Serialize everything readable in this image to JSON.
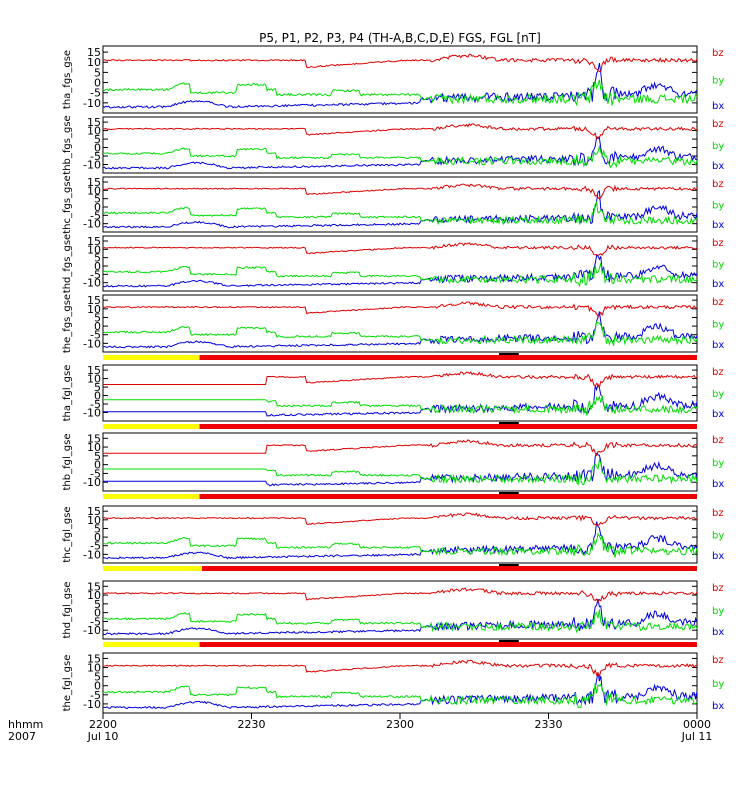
{
  "chart_data": {
    "type": "line",
    "title": "P5, P1, P2, P3, P4 (TH-A,B,C,D,E) FGS, FGL [nT]",
    "x_axis": {
      "range": [
        0,
        120
      ],
      "unit": "minutes after 2007-07-10 22:00",
      "ticks": [
        {
          "x": 0,
          "label": "2200",
          "sublabel": "Jul 10"
        },
        {
          "x": 30,
          "label": "2230",
          "sublabel": ""
        },
        {
          "x": 60,
          "label": "2300",
          "sublabel": ""
        },
        {
          "x": 90,
          "label": "2330",
          "sublabel": ""
        },
        {
          "x": 120,
          "label": "0000",
          "sublabel": "Jul 11"
        }
      ],
      "label_left_top": "hhmm",
      "label_left_bottom": "2007"
    },
    "series_colors": {
      "bz": "#dd0000",
      "by": "#00dd00",
      "bx": "#0000dd"
    },
    "bar_colors": {
      "left": "#ffff00",
      "right": "#ee0000",
      "marker": "#000000"
    },
    "panels": [
      {
        "ylabel": "tha_fgs_gse",
        "yticks": [
          "15",
          "10",
          "5",
          "0",
          "-5",
          "-10"
        ],
        "ylim": [
          -15,
          18
        ],
        "legend": [
          "bz",
          "by",
          "bx"
        ],
        "has_mode_bar": false,
        "has_flat_start": false,
        "mode_bar_split_min": null
      },
      {
        "ylabel": "thb_fgs_gse",
        "yticks": [
          "15",
          "10",
          "5",
          "0",
          "-5",
          "-10"
        ],
        "ylim": [
          -15,
          18
        ],
        "legend": [
          "bz",
          "by",
          "bx"
        ],
        "has_mode_bar": false,
        "has_flat_start": false,
        "mode_bar_split_min": null
      },
      {
        "ylabel": "thc_fgs_gse",
        "yticks": [
          "15",
          "10",
          "5",
          "0",
          "-5",
          "-10"
        ],
        "ylim": [
          -15,
          18
        ],
        "legend": [
          "bz",
          "by",
          "bx"
        ],
        "has_mode_bar": false,
        "has_flat_start": false,
        "mode_bar_split_min": null
      },
      {
        "ylabel": "thd_fgs_gse",
        "yticks": [
          "15",
          "10",
          "5",
          "0",
          "-5",
          "-10"
        ],
        "ylim": [
          -15,
          18
        ],
        "legend": [
          "bz",
          "by",
          "bx"
        ],
        "has_mode_bar": false,
        "has_flat_start": false,
        "mode_bar_split_min": null
      },
      {
        "ylabel": "the_fgs_gse",
        "yticks": [
          "15",
          "10",
          "5",
          "0",
          "-5",
          "-10"
        ],
        "ylim": [
          -15,
          18
        ],
        "legend": [
          "bz",
          "by",
          "bx"
        ],
        "has_mode_bar": true,
        "has_flat_start": false,
        "mode_bar_split_min": 19.5
      },
      {
        "ylabel": "tha_fgl_gse",
        "yticks": [
          "15",
          "10",
          "5",
          "0",
          "-5",
          "-10"
        ],
        "ylim": [
          -15,
          18
        ],
        "legend": [
          "bz",
          "by",
          "bx"
        ],
        "has_mode_bar": true,
        "has_flat_start": true,
        "mode_bar_split_min": 19.5
      },
      {
        "ylabel": "thb_fgl_gse",
        "yticks": [
          "15",
          "10",
          "5",
          "0",
          "-5",
          "-10"
        ],
        "ylim": [
          -15,
          18
        ],
        "legend": [
          "bz",
          "by",
          "bx"
        ],
        "has_mode_bar": true,
        "has_flat_start": true,
        "mode_bar_split_min": 19.5
      },
      {
        "ylabel": "thc_fgl_gse",
        "yticks": [
          "15",
          "10",
          "5",
          "0",
          "-5",
          "-10"
        ],
        "ylim": [
          -15,
          18
        ],
        "legend": [
          "bz",
          "by",
          "bx"
        ],
        "has_mode_bar": true,
        "has_flat_start": false,
        "mode_bar_split_min": 20.0
      },
      {
        "ylabel": "thd_fgl_gse",
        "yticks": [
          "15",
          "10",
          "5",
          "0",
          "-5",
          "-10"
        ],
        "ylim": [
          -15,
          18
        ],
        "legend": [
          "bz",
          "by",
          "bx"
        ],
        "has_mode_bar": true,
        "has_flat_start": false,
        "mode_bar_split_min": 19.5
      },
      {
        "ylabel": "the_fgl_gse",
        "yticks": [
          "15",
          "10",
          "5",
          "0",
          "-5",
          "-10"
        ],
        "ylim": [
          -15,
          18
        ],
        "legend": [
          "bz",
          "by",
          "bx"
        ],
        "has_mode_bar": false,
        "has_flat_start": false,
        "mode_bar_split_min": null
      }
    ]
  }
}
